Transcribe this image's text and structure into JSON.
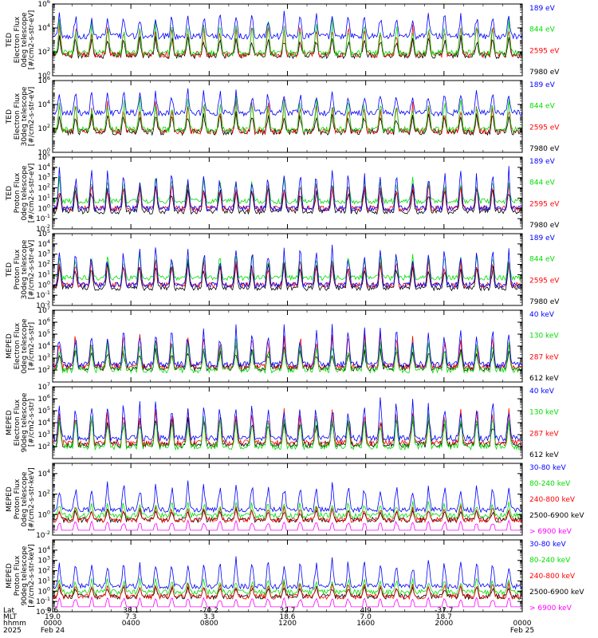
{
  "chart_data": [
    {
      "type": "line",
      "ylabel": [
        "TED",
        "Electron Flux",
        "0deg telescope",
        "[#/cm2-s-str-eV]"
      ],
      "ylim": [
        1,
        1000000
      ],
      "yscale": "log",
      "yticks": [
        {
          "base": "10",
          "exp": "0"
        },
        {
          "base": "10",
          "exp": "2"
        },
        {
          "base": "10",
          "exp": "4"
        },
        {
          "base": "10",
          "exp": "6"
        }
      ],
      "series": [
        {
          "name": "7980 eV",
          "color": "#000000",
          "base": 50,
          "spike": 3000
        },
        {
          "name": "2595 eV",
          "color": "#ff0000",
          "base": 60,
          "spike": 40000
        },
        {
          "name": "844 eV",
          "color": "#00dd00",
          "base": 80,
          "spike": 100000
        },
        {
          "name": "189 eV",
          "color": "#0000ff",
          "base": 2000,
          "spike": 300000
        }
      ]
    },
    {
      "type": "line",
      "ylabel": [
        "TED",
        "Electron Flux",
        "30deg telescope",
        "[#/cm2-s-str-eV]"
      ],
      "ylim": [
        1,
        1000000
      ],
      "yscale": "log",
      "yticks": [
        {
          "base": "10",
          "exp": "0"
        },
        {
          "base": "10",
          "exp": "2"
        },
        {
          "base": "10",
          "exp": "4"
        },
        {
          "base": "10",
          "exp": "6"
        }
      ],
      "series": [
        {
          "name": "7980 eV",
          "color": "#000000",
          "base": 50,
          "spike": 3000
        },
        {
          "name": "2595 eV",
          "color": "#ff0000",
          "base": 60,
          "spike": 40000
        },
        {
          "name": "844 eV",
          "color": "#00dd00",
          "base": 80,
          "spike": 100000
        },
        {
          "name": "189 eV",
          "color": "#0000ff",
          "base": 2000,
          "spike": 300000
        }
      ]
    },
    {
      "type": "line",
      "ylabel": [
        "TED",
        "Proton Flux",
        "0deg telescope",
        "[#/cm2-s-str-eV]"
      ],
      "ylim": [
        0.01,
        100000
      ],
      "yscale": "log",
      "yticks": [
        {
          "base": "10",
          "exp": "-2"
        },
        {
          "base": "10",
          "exp": "-1"
        },
        {
          "base": "10",
          "exp": "0"
        },
        {
          "base": "10",
          "exp": "1"
        },
        {
          "base": "10",
          "exp": "2"
        },
        {
          "base": "10",
          "exp": "3"
        },
        {
          "base": "10",
          "exp": "4"
        },
        {
          "base": "10",
          "exp": "5"
        }
      ],
      "series": [
        {
          "name": "7980 eV",
          "color": "#000000",
          "base": 0.5,
          "spike": 300
        },
        {
          "name": "2595 eV",
          "color": "#ff0000",
          "base": 1,
          "spike": 600
        },
        {
          "name": "844 eV",
          "color": "#00dd00",
          "base": 5,
          "spike": 2000
        },
        {
          "name": "189 eV",
          "color": "#0000ff",
          "base": 1,
          "spike": 20000
        }
      ]
    },
    {
      "type": "line",
      "ylabel": [
        "TED",
        "Proton Flux",
        "30deg telescope",
        "[#/cm2-s-str-eV]"
      ],
      "ylim": [
        0.01,
        100000
      ],
      "yscale": "log",
      "yticks": [
        {
          "base": "10",
          "exp": "-2"
        },
        {
          "base": "10",
          "exp": "-1"
        },
        {
          "base": "10",
          "exp": "0"
        },
        {
          "base": "10",
          "exp": "1"
        },
        {
          "base": "10",
          "exp": "2"
        },
        {
          "base": "10",
          "exp": "3"
        },
        {
          "base": "10",
          "exp": "4"
        },
        {
          "base": "10",
          "exp": "5"
        }
      ],
      "series": [
        {
          "name": "7980 eV",
          "color": "#000000",
          "base": 0.5,
          "spike": 300
        },
        {
          "name": "2595 eV",
          "color": "#ff0000",
          "base": 1,
          "spike": 600
        },
        {
          "name": "844 eV",
          "color": "#00dd00",
          "base": 5,
          "spike": 2000
        },
        {
          "name": "189 eV",
          "color": "#0000ff",
          "base": 1,
          "spike": 20000
        }
      ]
    },
    {
      "type": "line",
      "ylabel": [
        "MEPED",
        "Electron Flux",
        "0deg telescope",
        "[#/cm2-s-str]"
      ],
      "ylim": [
        10,
        10000000
      ],
      "yscale": "log",
      "yticks": [
        {
          "base": "10",
          "exp": "2"
        },
        {
          "base": "10",
          "exp": "3"
        },
        {
          "base": "10",
          "exp": "4"
        },
        {
          "base": "10",
          "exp": "5"
        },
        {
          "base": "10",
          "exp": "6"
        },
        {
          "base": "10",
          "exp": "7"
        }
      ],
      "series": [
        {
          "name": "612 keV",
          "color": "#000000",
          "base": 150,
          "spike": 10000
        },
        {
          "name": "287 keV",
          "color": "#ff0000",
          "base": 200,
          "spike": 300000
        },
        {
          "name": "130 keV",
          "color": "#00dd00",
          "base": 100,
          "spike": 50000
        },
        {
          "name": "40 keV",
          "color": "#0000ff",
          "base": 300,
          "spike": 1000000
        }
      ]
    },
    {
      "type": "line",
      "ylabel": [
        "MEPED",
        "Electron Flux",
        "90deg telescope",
        "[#/cm2-s-str]"
      ],
      "ylim": [
        10,
        10000000
      ],
      "yscale": "log",
      "yticks": [
        {
          "base": "10",
          "exp": "2"
        },
        {
          "base": "10",
          "exp": "3"
        },
        {
          "base": "10",
          "exp": "4"
        },
        {
          "base": "10",
          "exp": "5"
        },
        {
          "base": "10",
          "exp": "6"
        },
        {
          "base": "10",
          "exp": "7"
        }
      ],
      "series": [
        {
          "name": "612 keV",
          "color": "#000000",
          "base": 150,
          "spike": 100000
        },
        {
          "name": "287 keV",
          "color": "#ff0000",
          "base": 200,
          "spike": 300000
        },
        {
          "name": "130 keV",
          "color": "#00dd00",
          "base": 100,
          "spike": 100000
        },
        {
          "name": "40 keV",
          "color": "#0000ff",
          "base": 500,
          "spike": 2000000
        }
      ]
    },
    {
      "type": "line",
      "ylabel": [
        "MEPED",
        "Proton Flux",
        "0deg telescope",
        "[#/cm2-s-str-keV]"
      ],
      "ylim": [
        0.01,
        100000
      ],
      "yscale": "log",
      "yticks": [
        {
          "base": "10",
          "exp": "-2"
        },
        {
          "base": "10",
          "exp": "0"
        },
        {
          "base": "10",
          "exp": "2"
        },
        {
          "base": "10",
          "exp": "4"
        }
      ],
      "series": [
        {
          "name": "> 6900 keV",
          "color": "#ff00ff",
          "base": 0.05,
          "spike": 0.3
        },
        {
          "name": "2500-6900 keV",
          "color": "#000000",
          "base": 0.3,
          "spike": 5
        },
        {
          "name": "240-800 keV",
          "color": "#ff0000",
          "base": 0.3,
          "spike": 10
        },
        {
          "name": "80-240 keV",
          "color": "#00dd00",
          "base": 0.8,
          "spike": 30
        },
        {
          "name": "30-80 keV",
          "color": "#0000ff",
          "base": 3,
          "spike": 3000
        }
      ]
    },
    {
      "type": "line",
      "ylabel": [
        "MEPED",
        "Proton Flux",
        "90deg telescope",
        "[#/cm2-s-str-keV]"
      ],
      "ylim": [
        0.01,
        100000
      ],
      "yscale": "log",
      "yticks": [
        {
          "base": "10",
          "exp": "-2"
        },
        {
          "base": "10",
          "exp": "-1"
        },
        {
          "base": "10",
          "exp": "0"
        },
        {
          "base": "10",
          "exp": "1"
        },
        {
          "base": "10",
          "exp": "2"
        },
        {
          "base": "10",
          "exp": "3"
        },
        {
          "base": "10",
          "exp": "4"
        }
      ],
      "series": [
        {
          "name": "> 6900 keV",
          "color": "#ff00ff",
          "base": 0.05,
          "spike": 0.3
        },
        {
          "name": "2500-6900 keV",
          "color": "#000000",
          "base": 0.3,
          "spike": 5
        },
        {
          "name": "240-800 keV",
          "color": "#ff0000",
          "base": 0.3,
          "spike": 10
        },
        {
          "name": "80-240 keV",
          "color": "#00dd00",
          "base": 0.8,
          "spike": 30
        },
        {
          "name": "30-80 keV",
          "color": "#0000ff",
          "base": 3,
          "spike": 3000
        }
      ]
    }
  ],
  "x_axis": {
    "rows": [
      {
        "label": "Lat",
        "values": [
          "9.6",
          "38.1",
          "-70.2",
          "32.7",
          "4.9",
          "-37.7",
          ""
        ]
      },
      {
        "label": "MLT",
        "values": [
          "19.0",
          "7.3",
          "3.3",
          "18.6",
          "7.0",
          "18.7",
          ""
        ]
      },
      {
        "label": "hhmm",
        "values": [
          "0000",
          "0400",
          "0800",
          "1200",
          "1600",
          "2000",
          "0000"
        ]
      },
      {
        "label": "2025",
        "values": [
          "Feb 24",
          "",
          "",
          "",
          "",
          "",
          "Feb 25"
        ]
      }
    ],
    "range_hours": [
      0,
      24
    ],
    "major_ticks_hours": [
      0,
      4,
      8,
      12,
      16,
      20,
      24
    ]
  }
}
